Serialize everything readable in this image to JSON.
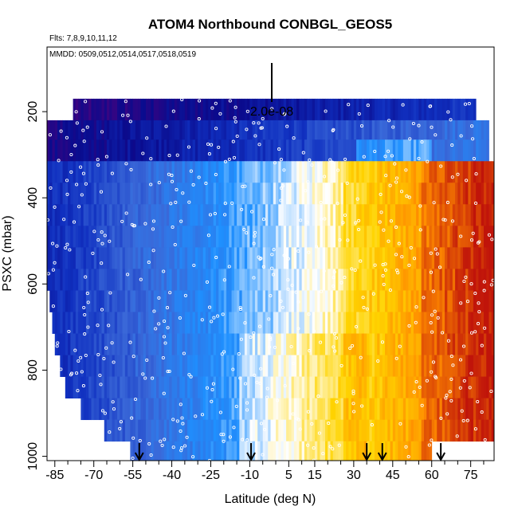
{
  "chart_data": {
    "type": "heatmap",
    "title": "ATOM4 Northbound CONBGL_GEOS5",
    "flights_label": "Flts: 7,8,9,10,11,12",
    "dates_label": "MMDD: 0509,0512,0514,0517,0518,0519",
    "xlabel": "Latitude (deg N)",
    "ylabel": "PSXC (mbar)",
    "xlim": [
      -88,
      84
    ],
    "ylim": [
      1010,
      50
    ],
    "y_reversed": true,
    "x_ticks": [
      -85,
      -70,
      -55,
      -40,
      -25,
      -10,
      5,
      15,
      30,
      45,
      60,
      75
    ],
    "x_minor_ticks": [
      -80,
      -75,
      -65,
      -60,
      -50,
      -45,
      -35,
      -30,
      -20,
      -15,
      -5,
      0,
      10,
      20,
      25,
      35,
      40,
      50,
      55,
      65,
      70,
      80
    ],
    "y_ticks": [
      200,
      400,
      600,
      800,
      1000
    ],
    "scale_label": "2.0e-08",
    "arrows_latitude": [
      -52.5,
      -9.5,
      35,
      41,
      63.5
    ],
    "pressure_bands": [
      {
        "p_top": 170,
        "p_bot": 220,
        "lat_min": -78,
        "lat_max": 77
      },
      {
        "p_top": 220,
        "p_bot": 265,
        "lat_min": -88,
        "lat_max": 82
      },
      {
        "p_top": 265,
        "p_bot": 315,
        "lat_min": -88,
        "lat_max": 82
      },
      {
        "p_top": 315,
        "p_bot": 365,
        "lat_min": -88,
        "lat_max": 84
      },
      {
        "p_top": 365,
        "p_bot": 415,
        "lat_min": -88,
        "lat_max": 84
      },
      {
        "p_top": 415,
        "p_bot": 465,
        "lat_min": -88,
        "lat_max": 84
      },
      {
        "p_top": 465,
        "p_bot": 515,
        "lat_min": -88,
        "lat_max": 84
      },
      {
        "p_top": 515,
        "p_bot": 565,
        "lat_min": -88,
        "lat_max": 84
      },
      {
        "p_top": 565,
        "p_bot": 615,
        "lat_min": -88,
        "lat_max": 84
      },
      {
        "p_top": 615,
        "p_bot": 665,
        "lat_min": -87,
        "lat_max": 84
      },
      {
        "p_top": 665,
        "p_bot": 715,
        "lat_min": -86,
        "lat_max": 84
      },
      {
        "p_top": 715,
        "p_bot": 765,
        "lat_min": -85,
        "lat_max": 84
      },
      {
        "p_top": 765,
        "p_bot": 815,
        "lat_min": -83,
        "lat_max": 84
      },
      {
        "p_top": 815,
        "p_bot": 865,
        "lat_min": -81,
        "lat_max": 84
      },
      {
        "p_top": 865,
        "p_bot": 915,
        "lat_min": -75,
        "lat_max": 84
      },
      {
        "p_top": 915,
        "p_bot": 965,
        "lat_min": -66,
        "lat_max": 84
      },
      {
        "p_top": 965,
        "p_bot": 1010,
        "lat_min": -56,
        "lat_max": 60
      }
    ],
    "colormap": [
      "#5a007a",
      "#0a0a8c",
      "#1030c0",
      "#3a68d8",
      "#1e90ff",
      "#ffffff",
      "#ffd400",
      "#ff8c00",
      "#c0140a"
    ],
    "marker_color": "#ffffff"
  }
}
